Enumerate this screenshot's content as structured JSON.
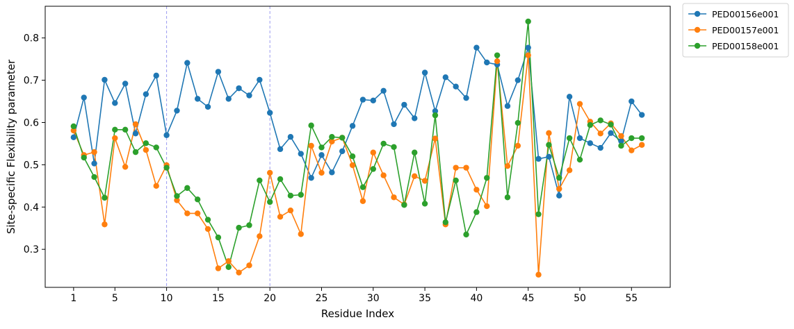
{
  "chart_data": {
    "type": "line",
    "title": "",
    "xlabel": "Residue Index",
    "ylabel": "Site-specific Flexibility parameter",
    "x": [
      1,
      2,
      3,
      4,
      5,
      6,
      7,
      8,
      9,
      10,
      11,
      12,
      13,
      14,
      15,
      16,
      17,
      18,
      19,
      20,
      21,
      22,
      23,
      24,
      25,
      26,
      27,
      28,
      29,
      30,
      31,
      32,
      33,
      34,
      35,
      36,
      37,
      38,
      39,
      40,
      41,
      42,
      43,
      44,
      45,
      46,
      47,
      48,
      49,
      50,
      51,
      52,
      53,
      54,
      55,
      56
    ],
    "x_ticks": [
      1,
      5,
      10,
      15,
      20,
      25,
      30,
      35,
      40,
      45,
      50,
      55
    ],
    "y_ticks": [
      0.3,
      0.4,
      0.5,
      0.6,
      0.7,
      0.8
    ],
    "xlim": [
      -1.75,
      58.75
    ],
    "ylim": [
      0.21,
      0.875
    ],
    "grid": false,
    "legend_position": "outside-top-right",
    "vlines": [
      10,
      20
    ],
    "vline_color": "#9b9bf0",
    "series": [
      {
        "name": "PED00156e001",
        "color": "#1f77b4",
        "values": [
          0.565,
          0.659,
          0.503,
          0.701,
          0.646,
          0.692,
          0.574,
          0.667,
          0.711,
          0.57,
          0.628,
          0.741,
          0.656,
          0.637,
          0.72,
          0.656,
          0.681,
          0.664,
          0.701,
          0.623,
          0.537,
          0.566,
          0.526,
          0.469,
          0.523,
          0.482,
          0.532,
          0.592,
          0.654,
          0.652,
          0.675,
          0.596,
          0.642,
          0.61,
          0.718,
          0.627,
          0.707,
          0.685,
          0.658,
          0.777,
          0.742,
          0.737,
          0.639,
          0.7,
          0.777,
          0.514,
          0.519,
          0.427,
          0.661,
          0.563,
          0.551,
          0.54,
          0.575,
          0.556,
          0.65,
          0.618
        ]
      },
      {
        "name": "PED00157e001",
        "color": "#ff7f0e",
        "values": [
          0.581,
          0.523,
          0.53,
          0.359,
          0.563,
          0.495,
          0.596,
          0.535,
          0.45,
          0.499,
          0.416,
          0.385,
          0.385,
          0.348,
          0.255,
          0.272,
          0.245,
          0.262,
          0.331,
          0.481,
          0.377,
          0.392,
          0.336,
          0.545,
          0.481,
          0.555,
          0.564,
          0.499,
          0.414,
          0.529,
          0.475,
          0.423,
          0.406,
          0.473,
          0.462,
          0.562,
          0.359,
          0.493,
          0.493,
          0.441,
          0.402,
          0.745,
          0.497,
          0.545,
          0.759,
          0.24,
          0.575,
          0.443,
          0.487,
          0.644,
          0.602,
          0.574,
          0.598,
          0.568,
          0.534,
          0.547
        ]
      },
      {
        "name": "PED00158e001",
        "color": "#2ca02c",
        "values": [
          0.591,
          0.517,
          0.471,
          0.422,
          0.583,
          0.583,
          0.53,
          0.551,
          0.541,
          0.493,
          0.426,
          0.445,
          0.418,
          0.37,
          0.328,
          0.258,
          0.351,
          0.357,
          0.463,
          0.412,
          0.466,
          0.427,
          0.429,
          0.593,
          0.541,
          0.566,
          0.564,
          0.52,
          0.447,
          0.49,
          0.55,
          0.542,
          0.405,
          0.529,
          0.408,
          0.617,
          0.364,
          0.463,
          0.335,
          0.388,
          0.469,
          0.759,
          0.423,
          0.599,
          0.839,
          0.383,
          0.547,
          0.469,
          0.563,
          0.512,
          0.594,
          0.605,
          0.595,
          0.545,
          0.563,
          0.563
        ]
      }
    ]
  }
}
